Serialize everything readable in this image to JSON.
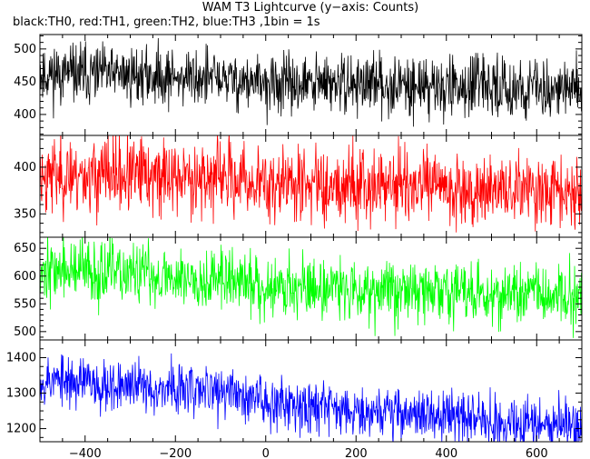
{
  "chart_data": {
    "type": "line",
    "title": "WAM T3 Lightcurve (y−axis: Counts)",
    "subtitle": "black:TH0, red:TH1, green:TH2, blue:TH3 ,1bin = 1s",
    "xlim": [
      -500,
      700
    ],
    "x_ticks": [
      -400,
      -200,
      0,
      200,
      400,
      600
    ],
    "x_tick_labels": [
      "−400",
      "−200",
      "0",
      "200",
      "400",
      "600"
    ],
    "x_step": 1,
    "panels": [
      {
        "series": "TH0",
        "color": "#000000",
        "ylim": [
          368,
          522
        ],
        "y_ticks": [
          400,
          450,
          500
        ],
        "trend": [
          [
            -500,
            462
          ],
          [
            -300,
            460
          ],
          [
            -100,
            455
          ],
          [
            0,
            445
          ],
          [
            200,
            447
          ],
          [
            400,
            443
          ],
          [
            600,
            440
          ],
          [
            700,
            438
          ]
        ],
        "noise": 22,
        "seed": 11
      },
      {
        "series": "TH1",
        "color": "#ff0000",
        "ylim": [
          325,
          434
        ],
        "y_ticks": [
          350,
          400
        ],
        "trend": [
          [
            -500,
            392
          ],
          [
            -300,
            391
          ],
          [
            -100,
            389
          ],
          [
            0,
            382
          ],
          [
            200,
            383
          ],
          [
            400,
            378
          ],
          [
            600,
            375
          ],
          [
            700,
            374
          ]
        ],
        "noise": 20,
        "seed": 23
      },
      {
        "series": "TH2",
        "color": "#00ff00",
        "ylim": [
          485,
          670
        ],
        "y_ticks": [
          500,
          550,
          600,
          650
        ],
        "trend": [
          [
            -500,
            612
          ],
          [
            -300,
            603
          ],
          [
            -100,
            595
          ],
          [
            0,
            582
          ],
          [
            200,
            578
          ],
          [
            400,
            572
          ],
          [
            600,
            565
          ],
          [
            700,
            563
          ]
        ],
        "noise": 28,
        "seed": 37
      },
      {
        "series": "TH3",
        "color": "#0000ff",
        "ylim": [
          1163,
          1450
        ],
        "y_ticks": [
          1200,
          1300,
          1400
        ],
        "trend": [
          [
            -500,
            1340
          ],
          [
            -300,
            1320
          ],
          [
            -100,
            1305
          ],
          [
            0,
            1280
          ],
          [
            200,
            1255
          ],
          [
            400,
            1235
          ],
          [
            600,
            1215
          ],
          [
            700,
            1208
          ]
        ],
        "noise": 36,
        "seed": 53
      }
    ],
    "grid": false
  }
}
